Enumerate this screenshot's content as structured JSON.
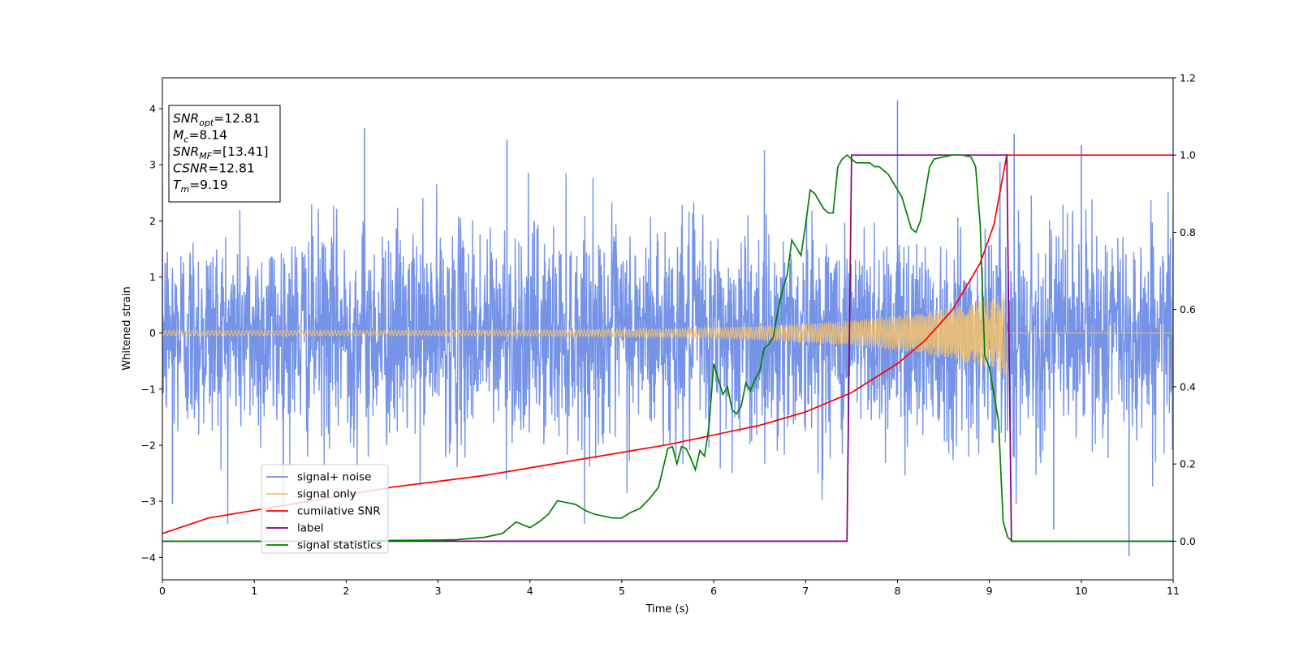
{
  "chart_data": {
    "type": "line",
    "xlabel": "Time (s)",
    "ylabel": "Whitened strain",
    "xlim": [
      0,
      11
    ],
    "ylim_left": [
      -4.4,
      4.55
    ],
    "ylim_right": [
      -0.1,
      1.2
    ],
    "x_ticks": [
      "0",
      "1",
      "2",
      "3",
      "4",
      "5",
      "6",
      "7",
      "8",
      "9",
      "10",
      "11"
    ],
    "y_ticks_left": [
      "−4",
      "−3",
      "−2",
      "−1",
      "0",
      "1",
      "2",
      "3",
      "4"
    ],
    "y_ticks_left_values": [
      -4,
      -3,
      -2,
      -1,
      0,
      1,
      2,
      3,
      4
    ],
    "y_ticks_right": [
      "0.0",
      "0.2",
      "0.4",
      "0.6",
      "0.8",
      "1.0",
      "1.2"
    ],
    "y_ticks_right_values": [
      0.0,
      0.2,
      0.4,
      0.6,
      0.8,
      1.0,
      1.2
    ],
    "annotation": {
      "lines": [
        {
          "main": "SNR",
          "sub": "opt",
          "value": "=12.81"
        },
        {
          "main": "M",
          "sub": "c",
          "value": "=8.14"
        },
        {
          "main": "SNR",
          "sub": "MF",
          "value": "=[13.41]"
        },
        {
          "main": "CSNR",
          "sub": "",
          "value": "=12.81"
        },
        {
          "main": "T",
          "sub": "m",
          "value": "=9.19"
        }
      ]
    },
    "legend_position": "lower-left",
    "series": [
      {
        "name": "signal+ noise",
        "axis": "left",
        "color": "#6f8ee6",
        "description_values": {
          "noise_std": 1.0,
          "peak": 4.15,
          "min": -3.98
        },
        "peaks": [
          {
            "x": 0.11,
            "y": -3.05
          },
          {
            "x": 2.2,
            "y": 3.65
          },
          {
            "x": 3.75,
            "y": 3.45
          },
          {
            "x": 8.0,
            "y": 4.15
          },
          {
            "x": 9.27,
            "y": 3.55
          },
          {
            "x": 10.0,
            "y": 3.35
          },
          {
            "x": 10.52,
            "y": -3.98
          },
          {
            "x": 9.7,
            "y": -3.5
          }
        ]
      },
      {
        "name": "signal only",
        "axis": "left",
        "color": "#f5c26b",
        "chirp": {
          "t_merger": 9.19,
          "amp_start": 0.04,
          "amp_end": 0.6
        }
      },
      {
        "name": "cumilative SNR",
        "axis": "right",
        "color": "#ff0000",
        "x": [
          0,
          0.5,
          1,
          1.5,
          2,
          2.5,
          3,
          3.5,
          4,
          4.5,
          5,
          5.5,
          6,
          6.5,
          7,
          7.5,
          8,
          8.3,
          8.6,
          8.9,
          9.05,
          9.19,
          9.25,
          11
        ],
        "y": [
          0.02,
          0.06,
          0.08,
          0.1,
          0.12,
          0.14,
          0.155,
          0.17,
          0.19,
          0.21,
          0.23,
          0.25,
          0.275,
          0.3,
          0.335,
          0.385,
          0.46,
          0.52,
          0.6,
          0.72,
          0.82,
          1.0,
          1.0,
          1.0
        ]
      },
      {
        "name": "label",
        "axis": "right",
        "color": "#800080",
        "x": [
          0,
          7.45,
          7.5,
          9.19,
          9.24,
          11
        ],
        "y": [
          0,
          0,
          1,
          1,
          0,
          0
        ]
      },
      {
        "name": "signal statistics",
        "axis": "right",
        "color": "#008000",
        "x": [
          0,
          0.5,
          1,
          1.5,
          2,
          2.5,
          3,
          3.2,
          3.5,
          3.7,
          3.85,
          4.0,
          4.1,
          4.2,
          4.3,
          4.4,
          4.5,
          4.6,
          4.7,
          4.8,
          4.9,
          5.0,
          5.1,
          5.2,
          5.3,
          5.4,
          5.5,
          5.55,
          5.6,
          5.65,
          5.7,
          5.75,
          5.8,
          5.85,
          5.9,
          5.95,
          6.0,
          6.05,
          6.1,
          6.15,
          6.2,
          6.25,
          6.3,
          6.35,
          6.4,
          6.45,
          6.5,
          6.55,
          6.6,
          6.65,
          6.7,
          6.75,
          6.8,
          6.85,
          6.9,
          6.95,
          7.0,
          7.05,
          7.1,
          7.15,
          7.2,
          7.25,
          7.3,
          7.35,
          7.4,
          7.45,
          7.5,
          7.55,
          7.6,
          7.65,
          7.7,
          7.75,
          7.8,
          7.85,
          7.9,
          7.95,
          8.0,
          8.05,
          8.1,
          8.15,
          8.2,
          8.25,
          8.3,
          8.35,
          8.4,
          8.5,
          8.6,
          8.7,
          8.8,
          8.85,
          8.9,
          8.95,
          9.0,
          9.05,
          9.1,
          9.15,
          9.2,
          9.25,
          9.3,
          11
        ],
        "y": [
          0.0,
          0.0,
          0.0,
          0.0,
          0.0,
          0.002,
          0.003,
          0.004,
          0.01,
          0.02,
          0.05,
          0.035,
          0.05,
          0.07,
          0.105,
          0.1,
          0.095,
          0.08,
          0.07,
          0.065,
          0.06,
          0.06,
          0.075,
          0.085,
          0.11,
          0.14,
          0.24,
          0.245,
          0.2,
          0.245,
          0.24,
          0.215,
          0.185,
          0.235,
          0.22,
          0.3,
          0.46,
          0.42,
          0.38,
          0.4,
          0.34,
          0.33,
          0.35,
          0.41,
          0.39,
          0.42,
          0.44,
          0.5,
          0.51,
          0.53,
          0.6,
          0.65,
          0.69,
          0.78,
          0.76,
          0.74,
          0.82,
          0.91,
          0.9,
          0.88,
          0.86,
          0.85,
          0.85,
          0.97,
          0.99,
          1.0,
          0.99,
          0.98,
          0.98,
          0.98,
          0.98,
          0.97,
          0.97,
          0.96,
          0.95,
          0.93,
          0.91,
          0.89,
          0.85,
          0.81,
          0.8,
          0.83,
          0.9,
          0.97,
          0.99,
          0.995,
          1.0,
          1.0,
          0.995,
          0.97,
          0.82,
          0.48,
          0.45,
          0.38,
          0.31,
          0.05,
          0.01,
          0.0,
          0.0,
          0.0
        ]
      }
    ]
  }
}
